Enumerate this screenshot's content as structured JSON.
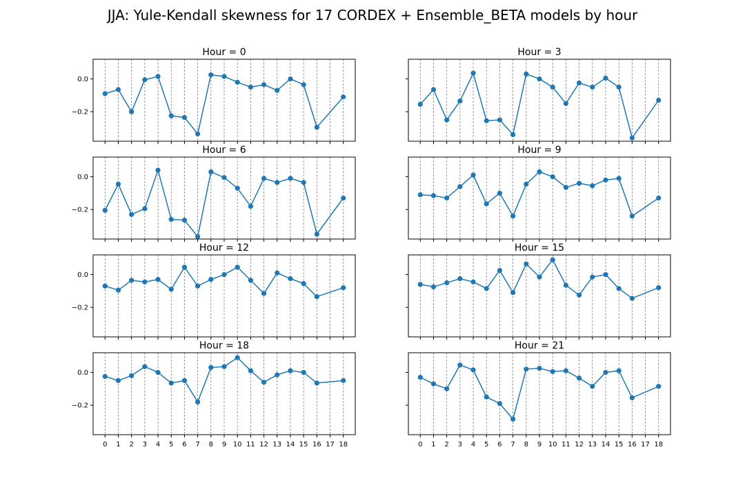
{
  "figure": {
    "title": "JJA: Yule-Kendall skewness for 17 CORDEX + Ensemble_BETA models by hour"
  },
  "colors": {
    "series": "#1f77b4",
    "grid": "#808080",
    "axis": "#000000"
  },
  "chart_data": [
    {
      "type": "line",
      "title": "Hour = 0",
      "xlabel": "",
      "ylabel": "",
      "x_ticks": [
        0,
        1,
        2,
        3,
        4,
        5,
        6,
        7,
        8,
        9,
        10,
        11,
        12,
        13,
        14,
        15,
        16,
        17,
        18
      ],
      "y_ticks": [
        0.0,
        -0.2
      ],
      "y_tick_labels": [
        "0.0",
        "−0.2"
      ],
      "xlim": [
        -0.9,
        18.9
      ],
      "ylim": [
        -0.38,
        0.12
      ],
      "grid": "vertical dashed at each x tick",
      "x": [
        0,
        1,
        2,
        3,
        4,
        5,
        6,
        7,
        8,
        9,
        10,
        11,
        12,
        13,
        14,
        15,
        16,
        18
      ],
      "values": [
        -0.09,
        -0.065,
        -0.2,
        -0.005,
        0.015,
        -0.225,
        -0.235,
        -0.335,
        0.025,
        0.015,
        -0.02,
        -0.05,
        -0.035,
        -0.07,
        0.0,
        -0.035,
        -0.295,
        -0.11
      ],
      "show_xtick_labels": false,
      "show_ytick_labels": true
    },
    {
      "type": "line",
      "title": "Hour = 3",
      "xlabel": "",
      "ylabel": "",
      "x_ticks": [
        0,
        1,
        2,
        3,
        4,
        5,
        6,
        7,
        8,
        9,
        10,
        11,
        12,
        13,
        14,
        15,
        16,
        17,
        18
      ],
      "y_ticks": [
        0.0,
        -0.2
      ],
      "y_tick_labels": [
        "0.0",
        "−0.2"
      ],
      "xlim": [
        -0.9,
        18.9
      ],
      "ylim": [
        -0.38,
        0.12
      ],
      "grid": "vertical dashed at each x tick",
      "x": [
        0,
        1,
        2,
        3,
        4,
        5,
        6,
        7,
        8,
        9,
        10,
        11,
        12,
        13,
        14,
        15,
        16,
        18
      ],
      "values": [
        -0.155,
        -0.065,
        -0.25,
        -0.135,
        0.035,
        -0.255,
        -0.25,
        -0.34,
        0.03,
        0.0,
        -0.05,
        -0.15,
        -0.025,
        -0.05,
        0.005,
        -0.05,
        -0.36,
        -0.13
      ],
      "show_xtick_labels": false,
      "show_ytick_labels": false
    },
    {
      "type": "line",
      "title": "Hour = 6",
      "xlabel": "",
      "ylabel": "",
      "x_ticks": [
        0,
        1,
        2,
        3,
        4,
        5,
        6,
        7,
        8,
        9,
        10,
        11,
        12,
        13,
        14,
        15,
        16,
        17,
        18
      ],
      "y_ticks": [
        0.0,
        -0.2
      ],
      "y_tick_labels": [
        "0.0",
        "−0.2"
      ],
      "xlim": [
        -0.9,
        18.9
      ],
      "ylim": [
        -0.38,
        0.12
      ],
      "grid": "vertical dashed at each x tick",
      "x": [
        0,
        1,
        2,
        3,
        4,
        5,
        6,
        7,
        8,
        9,
        10,
        11,
        12,
        13,
        14,
        15,
        16,
        18
      ],
      "values": [
        -0.205,
        -0.045,
        -0.23,
        -0.195,
        0.04,
        -0.26,
        -0.265,
        -0.365,
        0.03,
        -0.005,
        -0.07,
        -0.18,
        -0.01,
        -0.035,
        -0.01,
        -0.035,
        -0.35,
        -0.13
      ],
      "show_xtick_labels": false,
      "show_ytick_labels": true
    },
    {
      "type": "line",
      "title": "Hour = 9",
      "xlabel": "",
      "ylabel": "",
      "x_ticks": [
        0,
        1,
        2,
        3,
        4,
        5,
        6,
        7,
        8,
        9,
        10,
        11,
        12,
        13,
        14,
        15,
        16,
        17,
        18
      ],
      "y_ticks": [
        0.0,
        -0.2
      ],
      "y_tick_labels": [
        "0.0",
        "−0.2"
      ],
      "xlim": [
        -0.9,
        18.9
      ],
      "ylim": [
        -0.38,
        0.12
      ],
      "grid": "vertical dashed at each x tick",
      "x": [
        0,
        1,
        2,
        3,
        4,
        5,
        6,
        7,
        8,
        9,
        10,
        11,
        12,
        13,
        14,
        15,
        16,
        18
      ],
      "values": [
        -0.11,
        -0.115,
        -0.13,
        -0.06,
        0.01,
        -0.165,
        -0.1,
        -0.24,
        -0.045,
        0.03,
        0.0,
        -0.065,
        -0.04,
        -0.055,
        -0.02,
        -0.01,
        -0.24,
        -0.13
      ],
      "show_xtick_labels": false,
      "show_ytick_labels": false
    },
    {
      "type": "line",
      "title": "Hour = 12",
      "xlabel": "",
      "ylabel": "",
      "x_ticks": [
        0,
        1,
        2,
        3,
        4,
        5,
        6,
        7,
        8,
        9,
        10,
        11,
        12,
        13,
        14,
        15,
        16,
        17,
        18
      ],
      "y_ticks": [
        0.0,
        -0.2
      ],
      "y_tick_labels": [
        "0.0",
        "−0.2"
      ],
      "xlim": [
        -0.9,
        18.9
      ],
      "ylim": [
        -0.38,
        0.12
      ],
      "grid": "vertical dashed at each x tick",
      "x": [
        0,
        1,
        2,
        3,
        4,
        5,
        6,
        7,
        8,
        9,
        10,
        11,
        12,
        13,
        14,
        15,
        16,
        18
      ],
      "values": [
        -0.07,
        -0.095,
        -0.035,
        -0.045,
        -0.03,
        -0.09,
        0.045,
        -0.07,
        -0.03,
        0.0,
        0.045,
        -0.035,
        -0.115,
        0.01,
        -0.025,
        -0.055,
        -0.135,
        -0.08
      ],
      "show_xtick_labels": false,
      "show_ytick_labels": true
    },
    {
      "type": "line",
      "title": "Hour = 15",
      "xlabel": "",
      "ylabel": "",
      "x_ticks": [
        0,
        1,
        2,
        3,
        4,
        5,
        6,
        7,
        8,
        9,
        10,
        11,
        12,
        13,
        14,
        15,
        16,
        17,
        18
      ],
      "y_ticks": [
        0.0,
        -0.2
      ],
      "y_tick_labels": [
        "0.0",
        "−0.2"
      ],
      "xlim": [
        -0.9,
        18.9
      ],
      "ylim": [
        -0.38,
        0.12
      ],
      "grid": "vertical dashed at each x tick",
      "x": [
        0,
        1,
        2,
        3,
        4,
        5,
        6,
        7,
        8,
        9,
        10,
        11,
        12,
        13,
        14,
        15,
        16,
        18
      ],
      "values": [
        -0.06,
        -0.075,
        -0.05,
        -0.025,
        -0.045,
        -0.085,
        0.025,
        -0.11,
        0.065,
        -0.015,
        0.09,
        -0.065,
        -0.125,
        -0.015,
        0.0,
        -0.085,
        -0.145,
        -0.08
      ],
      "show_xtick_labels": false,
      "show_ytick_labels": false
    },
    {
      "type": "line",
      "title": "Hour = 18",
      "xlabel": "",
      "ylabel": "",
      "x_ticks": [
        0,
        1,
        2,
        3,
        4,
        5,
        6,
        7,
        8,
        9,
        10,
        11,
        12,
        13,
        14,
        15,
        16,
        17,
        18
      ],
      "y_ticks": [
        0.0,
        -0.2
      ],
      "y_tick_labels": [
        "0.0",
        "−0.2"
      ],
      "xlim": [
        -0.9,
        18.9
      ],
      "ylim": [
        -0.38,
        0.12
      ],
      "grid": "vertical dashed at each x tick",
      "x": [
        0,
        1,
        2,
        3,
        4,
        5,
        6,
        7,
        8,
        9,
        10,
        11,
        12,
        13,
        14,
        15,
        16,
        18
      ],
      "values": [
        -0.025,
        -0.05,
        -0.02,
        0.035,
        0.0,
        -0.065,
        -0.05,
        -0.18,
        0.03,
        0.035,
        0.09,
        0.01,
        -0.06,
        -0.015,
        0.01,
        0.0,
        -0.065,
        -0.05
      ],
      "show_xtick_labels": true,
      "show_ytick_labels": true
    },
    {
      "type": "line",
      "title": "Hour = 21",
      "xlabel": "",
      "ylabel": "",
      "x_ticks": [
        0,
        1,
        2,
        3,
        4,
        5,
        6,
        7,
        8,
        9,
        10,
        11,
        12,
        13,
        14,
        15,
        16,
        17,
        18
      ],
      "y_ticks": [
        0.0,
        -0.2
      ],
      "y_tick_labels": [
        "0.0",
        "−0.2"
      ],
      "xlim": [
        -0.9,
        18.9
      ],
      "ylim": [
        -0.38,
        0.12
      ],
      "grid": "vertical dashed at each x tick",
      "x": [
        0,
        1,
        2,
        3,
        4,
        5,
        6,
        7,
        8,
        9,
        10,
        11,
        12,
        13,
        14,
        15,
        16,
        18
      ],
      "values": [
        -0.03,
        -0.07,
        -0.1,
        0.045,
        0.015,
        -0.15,
        -0.19,
        -0.285,
        0.02,
        0.025,
        0.005,
        0.01,
        -0.035,
        -0.085,
        0.0,
        0.01,
        -0.155,
        -0.085
      ],
      "show_xtick_labels": true,
      "show_ytick_labels": false
    }
  ]
}
